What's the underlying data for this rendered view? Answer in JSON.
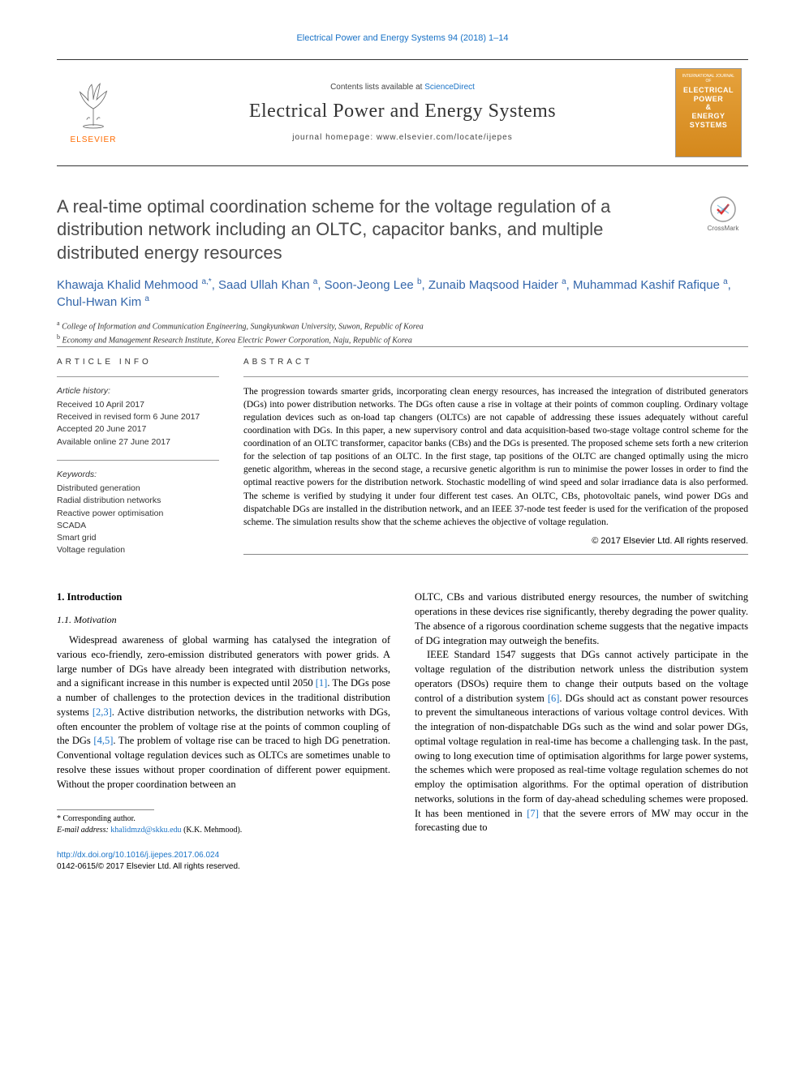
{
  "running_header": "Electrical Power and Energy Systems 94 (2018) 1–14",
  "masthead": {
    "contents_prefix": "Contents lists available at ",
    "contents_link": "ScienceDirect",
    "journal_name": "Electrical Power and Energy Systems",
    "homepage_prefix": "journal homepage: ",
    "homepage_url": "www.elsevier.com/locate/ijepes",
    "publisher_label": "ELSEVIER",
    "cover_top": "INTERNATIONAL JOURNAL OF",
    "cover_title1": "ELECTRICAL",
    "cover_title2": "POWER",
    "cover_amp": "&",
    "cover_title3": "ENERGY",
    "cover_title4": "SYSTEMS"
  },
  "title": "A real-time optimal coordination scheme for the voltage regulation of a distribution network including an OLTC, capacitor banks, and multiple distributed energy resources",
  "crossmark_label": "CrossMark",
  "authors_html": "Khawaja Khalid Mehmood <sup>a,*</sup>, Saad Ullah Khan <sup>a</sup>, Soon-Jeong Lee <sup>b</sup>, Zunaib Maqsood Haider <sup>a</sup>, Muhammad Kashif Rafique <sup>a</sup>, Chul-Hwan Kim <sup>a</sup>",
  "affiliations": [
    {
      "sup": "a",
      "text": "College of Information and Communication Engineering, Sungkyunkwan University, Suwon, Republic of Korea"
    },
    {
      "sup": "b",
      "text": "Economy and Management Research Institute, Korea Electric Power Corporation, Naju, Republic of Korea"
    }
  ],
  "article_info": {
    "heading": "ARTICLE INFO",
    "history_label": "Article history:",
    "history": [
      "Received 10 April 2017",
      "Received in revised form 6 June 2017",
      "Accepted 20 June 2017",
      "Available online 27 June 2017"
    ],
    "keywords_label": "Keywords:",
    "keywords": [
      "Distributed generation",
      "Radial distribution networks",
      "Reactive power optimisation",
      "SCADA",
      "Smart grid",
      "Voltage regulation"
    ]
  },
  "abstract": {
    "heading": "ABSTRACT",
    "text": "The progression towards smarter grids, incorporating clean energy resources, has increased the integration of distributed generators (DGs) into power distribution networks. The DGs often cause a rise in voltage at their points of common coupling. Ordinary voltage regulation devices such as on-load tap changers (OLTCs) are not capable of addressing these issues adequately without careful coordination with DGs. In this paper, a new supervisory control and data acquisition-based two-stage voltage control scheme for the coordination of an OLTC transformer, capacitor banks (CBs) and the DGs is presented. The proposed scheme sets forth a new criterion for the selection of tap positions of an OLTC. In the first stage, tap positions of the OLTC are changed optimally using the micro genetic algorithm, whereas in the second stage, a recursive genetic algorithm is run to minimise the power losses in order to find the optimal reactive powers for the distribution network. Stochastic modelling of wind speed and solar irradiance data is also performed. The scheme is verified by studying it under four different test cases. An OLTC, CBs, photovoltaic panels, wind power DGs and dispatchable DGs are installed in the distribution network, and an IEEE 37-node test feeder is used for the verification of the proposed scheme. The simulation results show that the scheme achieves the objective of voltage regulation.",
    "copyright": "© 2017 Elsevier Ltd. All rights reserved."
  },
  "body": {
    "sec1_num": "1.",
    "sec1_title": "Introduction",
    "sec11_num": "1.1.",
    "sec11_title": "Motivation",
    "left_para": "Widespread awareness of global warming has catalysed the integration of various eco-friendly, zero-emission distributed generators with power grids. A large number of DGs have already been integrated with distribution networks, and a significant increase in this number is expected until 2050 [1]. The DGs pose a number of challenges to the protection devices in the traditional distribution systems [2,3]. Active distribution networks, the distribution networks with DGs, often encounter the problem of voltage rise at the points of common coupling of the DGs [4,5]. The problem of voltage rise can be traced to high DG penetration. Conventional voltage regulation devices such as OLTCs are sometimes unable to resolve these issues without proper coordination of different power equipment. Without the proper coordination between an",
    "right_para1": "OLTC, CBs and various distributed energy resources, the number of switching operations in these devices rise significantly, thereby degrading the power quality. The absence of a rigorous coordination scheme suggests that the negative impacts of DG integration may outweigh the benefits.",
    "right_para2": "IEEE Standard 1547 suggests that DGs cannot actively participate in the voltage regulation of the distribution network unless the distribution system operators (DSOs) require them to change their outputs based on the voltage control of a distribution system [6]. DGs should act as constant power resources to prevent the simultaneous interactions of various voltage control devices. With the integration of non-dispatchable DGs such as the wind and solar power DGs, optimal voltage regulation in real-time has become a challenging task. In the past, owing to long execution time of optimisation algorithms for large power systems, the schemes which were proposed as real-time voltage regulation schemes do not employ the optimisation algorithms. For the optimal operation of distribution networks, solutions in the form of day-ahead scheduling schemes were proposed. It has been mentioned in [7] that the severe errors of MW may occur in the forecasting due to"
  },
  "footnote": {
    "corr_label": "* Corresponding author.",
    "email_label": "E-mail address:",
    "email": "khalidmzd@skku.edu",
    "email_who": "(K.K. Mehmood)."
  },
  "footer": {
    "doi_url": "http://dx.doi.org/10.1016/j.ijepes.2017.06.024",
    "issn_line": "0142-0615/© 2017 Elsevier Ltd. All rights reserved."
  },
  "colors": {
    "link": "#1a73c7",
    "author": "#3366aa",
    "elsevier_orange": "#ff6b00",
    "cover_bg": "#e6a23c"
  }
}
